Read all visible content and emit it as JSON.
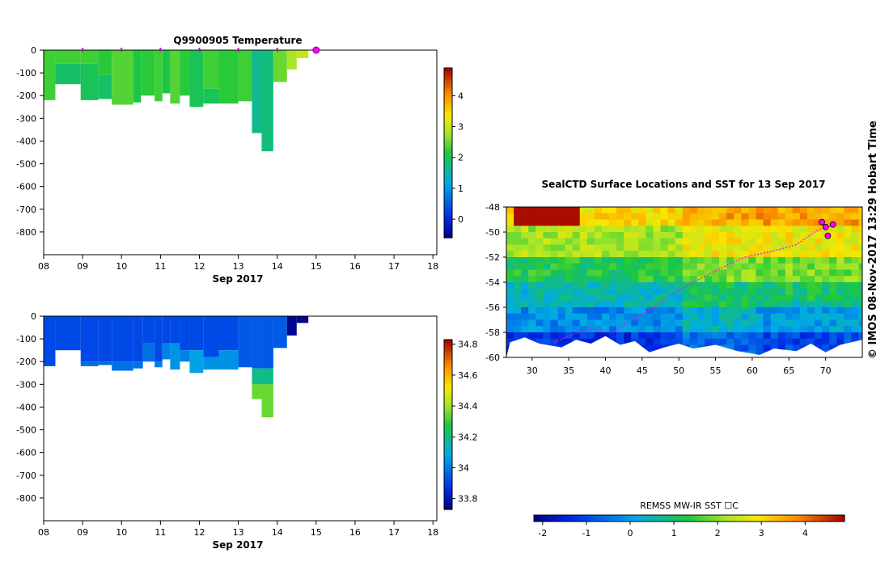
{
  "chart_data": [
    {
      "type": "heatmap",
      "title": "Q9900905  Temperature",
      "xlabel": "Sep 2017",
      "ylabel": "",
      "x_ticks": [
        "08",
        "09",
        "10",
        "11",
        "12",
        "13",
        "14",
        "15",
        "16",
        "17",
        "18"
      ],
      "y_ticks": [
        "0",
        "-100",
        "-200",
        "-300",
        "-400",
        "-500",
        "-600",
        "-700",
        "-800"
      ],
      "xlim": [
        8,
        18.1
      ],
      "ylim": [
        -900,
        0
      ],
      "colorbar": {
        "ticks": [
          "0",
          "1",
          "2",
          "3",
          "4"
        ],
        "range": [
          -0.6,
          4.9
        ]
      },
      "surface_marker_days": [
        9,
        10,
        11,
        12,
        13,
        14
      ],
      "last_position_day": 15,
      "profiles": [
        {
          "start": 8.0,
          "end": 8.3,
          "depth": 225,
          "layers": [
            {
              "to": 220,
              "value": 2.3
            }
          ]
        },
        {
          "start": 8.3,
          "end": 8.95,
          "depth": 150,
          "layers": [
            {
              "to": 60,
              "value": 2.3
            },
            {
              "to": 150,
              "value": 1.9
            }
          ]
        },
        {
          "start": 8.95,
          "end": 9.4,
          "depth": 220,
          "layers": [
            {
              "to": 60,
              "value": 2.3
            },
            {
              "to": 220,
              "value": 2.0
            }
          ]
        },
        {
          "start": 9.4,
          "end": 9.75,
          "depth": 215,
          "layers": [
            {
              "to": 110,
              "value": 2.2
            },
            {
              "to": 215,
              "value": 1.9
            }
          ]
        },
        {
          "start": 9.75,
          "end": 10.3,
          "depth": 240,
          "layers": [
            {
              "to": 240,
              "value": 2.4
            }
          ]
        },
        {
          "start": 10.3,
          "end": 10.5,
          "depth": 230,
          "layers": [
            {
              "to": 230,
              "value": 2.1
            }
          ]
        },
        {
          "start": 10.5,
          "end": 10.85,
          "depth": 200,
          "layers": [
            {
              "to": 200,
              "value": 2.2
            }
          ]
        },
        {
          "start": 10.85,
          "end": 11.05,
          "depth": 225,
          "layers": [
            {
              "to": 225,
              "value": 2.3
            }
          ]
        },
        {
          "start": 11.05,
          "end": 11.25,
          "depth": 190,
          "layers": [
            {
              "to": 190,
              "value": 2.1
            }
          ]
        },
        {
          "start": 11.25,
          "end": 11.5,
          "depth": 235,
          "layers": [
            {
              "to": 235,
              "value": 2.4
            }
          ]
        },
        {
          "start": 11.5,
          "end": 11.75,
          "depth": 200,
          "layers": [
            {
              "to": 200,
              "value": 2.2
            }
          ]
        },
        {
          "start": 11.75,
          "end": 12.1,
          "depth": 250,
          "layers": [
            {
              "to": 250,
              "value": 2.0
            }
          ]
        },
        {
          "start": 12.1,
          "end": 12.5,
          "depth": 235,
          "layers": [
            {
              "to": 170,
              "value": 2.3
            },
            {
              "to": 235,
              "value": 2.0
            }
          ]
        },
        {
          "start": 12.5,
          "end": 13.0,
          "depth": 235,
          "layers": [
            {
              "to": 235,
              "value": 2.2
            }
          ]
        },
        {
          "start": 13.0,
          "end": 13.35,
          "depth": 225,
          "layers": [
            {
              "to": 225,
              "value": 2.3
            }
          ]
        },
        {
          "start": 13.35,
          "end": 13.6,
          "depth": 365,
          "layers": [
            {
              "to": 365,
              "value": 1.7
            }
          ]
        },
        {
          "start": 13.6,
          "end": 13.9,
          "depth": 445,
          "layers": [
            {
              "to": 445,
              "value": 1.8
            }
          ]
        },
        {
          "start": 13.9,
          "end": 14.25,
          "depth": 140,
          "layers": [
            {
              "to": 140,
              "value": 2.5
            }
          ]
        },
        {
          "start": 14.25,
          "end": 14.5,
          "depth": 85,
          "layers": [
            {
              "to": 85,
              "value": 2.8
            }
          ]
        },
        {
          "start": 14.5,
          "end": 14.8,
          "depth": 35,
          "layers": [
            {
              "to": 35,
              "value": 3.0
            }
          ]
        }
      ]
    },
    {
      "type": "heatmap",
      "title": "",
      "xlabel": "Sep 2017",
      "ylabel": "",
      "x_ticks": [
        "08",
        "09",
        "10",
        "11",
        "12",
        "13",
        "14",
        "15",
        "16",
        "17",
        "18"
      ],
      "y_ticks": [
        "0",
        "-100",
        "-200",
        "-300",
        "-400",
        "-500",
        "-600",
        "-700",
        "-800"
      ],
      "xlim": [
        8,
        18.1
      ],
      "ylim": [
        -900,
        0
      ],
      "colorbar": {
        "ticks": [
          "33.8",
          "34",
          "34.2",
          "34.4",
          "34.6",
          "34.8"
        ],
        "range": [
          33.73,
          34.83
        ]
      },
      "profiles": [
        {
          "start": 8.0,
          "end": 8.3,
          "depth": 225,
          "layers": [
            {
              "to": 220,
              "value": 33.92
            }
          ]
        },
        {
          "start": 8.3,
          "end": 8.95,
          "depth": 150,
          "layers": [
            {
              "to": 150,
              "value": 33.92
            }
          ]
        },
        {
          "start": 8.95,
          "end": 9.4,
          "depth": 220,
          "layers": [
            {
              "to": 200,
              "value": 33.92
            },
            {
              "to": 220,
              "value": 33.98
            }
          ]
        },
        {
          "start": 9.4,
          "end": 9.75,
          "depth": 215,
          "layers": [
            {
              "to": 200,
              "value": 33.92
            },
            {
              "to": 215,
              "value": 33.98
            }
          ]
        },
        {
          "start": 9.75,
          "end": 10.3,
          "depth": 240,
          "layers": [
            {
              "to": 200,
              "value": 33.92
            },
            {
              "to": 240,
              "value": 33.99
            }
          ]
        },
        {
          "start": 10.3,
          "end": 10.55,
          "depth": 230,
          "layers": [
            {
              "to": 200,
              "value": 33.92
            },
            {
              "to": 230,
              "value": 33.99
            }
          ]
        },
        {
          "start": 10.55,
          "end": 10.85,
          "depth": 200,
          "layers": [
            {
              "to": 120,
              "value": 33.92
            },
            {
              "to": 200,
              "value": 33.99
            }
          ]
        },
        {
          "start": 10.85,
          "end": 11.05,
          "depth": 225,
          "layers": [
            {
              "to": 200,
              "value": 33.92
            },
            {
              "to": 225,
              "value": 34.02
            }
          ]
        },
        {
          "start": 11.05,
          "end": 11.25,
          "depth": 190,
          "layers": [
            {
              "to": 120,
              "value": 33.92
            },
            {
              "to": 190,
              "value": 34.02
            }
          ]
        },
        {
          "start": 11.25,
          "end": 11.5,
          "depth": 235,
          "layers": [
            {
              "to": 120,
              "value": 33.92
            },
            {
              "to": 235,
              "value": 34.05
            }
          ]
        },
        {
          "start": 11.5,
          "end": 11.75,
          "depth": 200,
          "layers": [
            {
              "to": 150,
              "value": 33.92
            },
            {
              "to": 200,
              "value": 34.02
            }
          ]
        },
        {
          "start": 11.75,
          "end": 12.1,
          "depth": 250,
          "layers": [
            {
              "to": 150,
              "value": 33.92
            },
            {
              "to": 250,
              "value": 34.08
            }
          ]
        },
        {
          "start": 12.1,
          "end": 12.5,
          "depth": 235,
          "layers": [
            {
              "to": 180,
              "value": 33.92
            },
            {
              "to": 235,
              "value": 34.05
            }
          ]
        },
        {
          "start": 12.5,
          "end": 13.0,
          "depth": 235,
          "layers": [
            {
              "to": 150,
              "value": 33.92
            },
            {
              "to": 235,
              "value": 34.05
            }
          ]
        },
        {
          "start": 13.0,
          "end": 13.35,
          "depth": 225,
          "layers": [
            {
              "to": 225,
              "value": 33.95
            }
          ]
        },
        {
          "start": 13.35,
          "end": 13.6,
          "depth": 365,
          "layers": [
            {
              "to": 230,
              "value": 33.95
            },
            {
              "to": 300,
              "value": 34.2
            },
            {
              "to": 365,
              "value": 34.35
            }
          ]
        },
        {
          "start": 13.6,
          "end": 13.9,
          "depth": 445,
          "layers": [
            {
              "to": 230,
              "value": 33.95
            },
            {
              "to": 300,
              "value": 34.2
            },
            {
              "to": 445,
              "value": 34.35
            }
          ]
        },
        {
          "start": 13.9,
          "end": 14.25,
          "depth": 140,
          "layers": [
            {
              "to": 140,
              "value": 33.95
            }
          ]
        },
        {
          "start": 14.25,
          "end": 14.5,
          "depth": 85,
          "layers": [
            {
              "to": 85,
              "value": 33.75
            }
          ]
        },
        {
          "start": 14.5,
          "end": 14.8,
          "depth": 30,
          "layers": [
            {
              "to": 30,
              "value": 33.75
            }
          ]
        }
      ]
    },
    {
      "type": "heatmap",
      "title": "SealCTD Surface Locations and SST for 13 Sep 2017",
      "xlabel": "",
      "ylabel": "",
      "x_ticks": [
        "30",
        "35",
        "40",
        "45",
        "50",
        "55",
        "60",
        "65",
        "70"
      ],
      "y_ticks": [
        "-48",
        "-50",
        "-52",
        "-54",
        "-56",
        "-58",
        "-60"
      ],
      "xlim": [
        26.5,
        75
      ],
      "ylim": [
        -60,
        -48
      ],
      "colorbar": {
        "label": "REMSS MW-IR SST ☐C",
        "ticks": [
          "-2",
          "-1",
          "0",
          "1",
          "2",
          "3",
          "4"
        ],
        "range": [
          -2.2,
          4.9
        ]
      },
      "sst_bands": [
        {
          "lat_to": -49.5,
          "value": 3.0
        },
        {
          "lat_to": -52.0,
          "value": 2.2
        },
        {
          "lat_to": -54.0,
          "value": 1.3
        },
        {
          "lat_to": -56.0,
          "value": 0.5
        },
        {
          "lat_to": -58.0,
          "value": -0.2
        },
        {
          "lat_to": -60.0,
          "value": -1.2
        }
      ],
      "warm_patch": {
        "lon": [
          27,
          36
        ],
        "lat": [
          -48,
          -49.3
        ],
        "value": 4.8
      },
      "track": [
        [
          33,
          -58.8
        ],
        [
          35,
          -58.3
        ],
        [
          38,
          -57.7
        ],
        [
          41,
          -58.0
        ],
        [
          43,
          -57.2
        ],
        [
          46,
          -56.2
        ],
        [
          49,
          -55.0
        ],
        [
          52,
          -54.0
        ],
        [
          56,
          -52.8
        ],
        [
          59,
          -52.0
        ],
        [
          63,
          -51.5
        ],
        [
          66,
          -51.0
        ],
        [
          69,
          -49.8
        ],
        [
          71,
          -49.5
        ]
      ],
      "seal_positions": [
        [
          69.5,
          -49.2
        ],
        [
          70.0,
          -49.6
        ],
        [
          71.0,
          -49.4
        ],
        [
          70.3,
          -50.3
        ]
      ]
    }
  ],
  "timestamp_label": "©  IMOS 08-Nov-2017 13:29 Hobart Time"
}
